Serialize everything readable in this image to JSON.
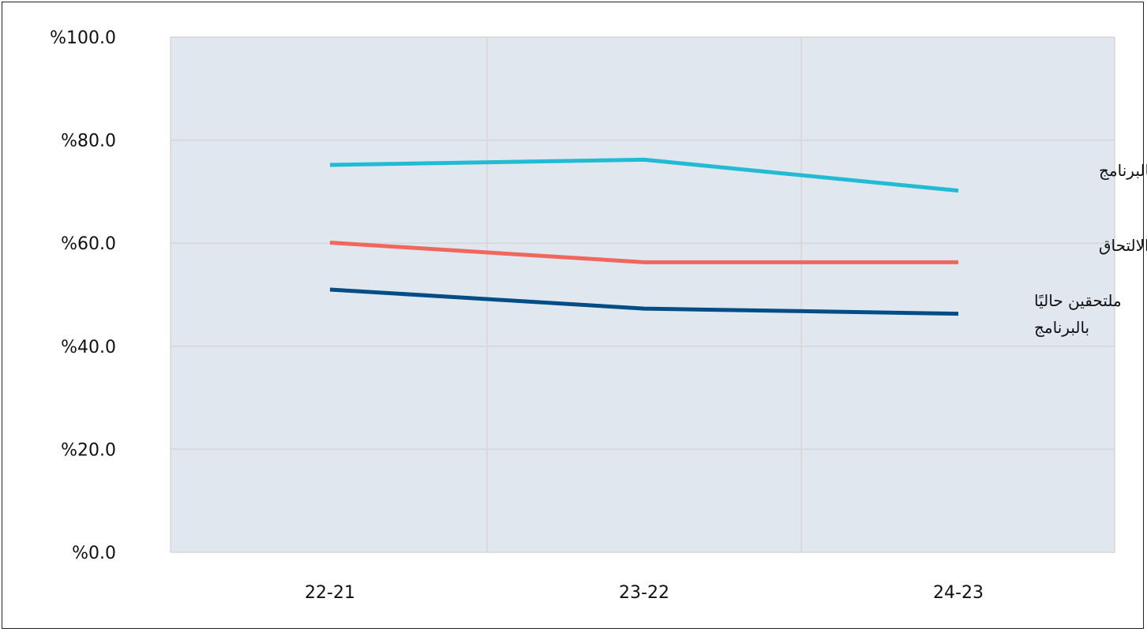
{
  "chart_data": {
    "type": "line",
    "categories": [
      "22-21",
      "23-22",
      "24-23"
    ],
    "ylim": [
      0,
      100
    ],
    "y_ticks": [
      "%0.0",
      "%20.0",
      "%40.0",
      "%60.0",
      "%80.0",
      "%100.0"
    ],
    "y_tick_values": [
      0,
      20,
      40,
      60,
      80,
      100
    ],
    "grid": true,
    "legend": "inline-right",
    "plot_background": "#e0e7ef",
    "series": [
      {
        "name": "ملتحقين سابقًا بالبرنامج",
        "label_lines": [
          "ملتحقين سابقًا بالبرنامج"
        ],
        "color": "#21bcd3",
        "values": [
          75.2,
          76.2,
          70.2
        ]
      },
      {
        "name": "لم يسبق لهم الالتحاق",
        "label_lines": [
          "لم يسبق لهم الالتحاق"
        ],
        "color": "#f1675e",
        "values": [
          60.1,
          56.3,
          56.3
        ]
      },
      {
        "name": "ملتحقين حاليًا بالبرنامج",
        "label_lines": [
          "ملتحقين حاليًا",
          "بالبرنامج"
        ],
        "color": "#034d87",
        "values": [
          51.0,
          47.3,
          46.3
        ]
      }
    ]
  }
}
